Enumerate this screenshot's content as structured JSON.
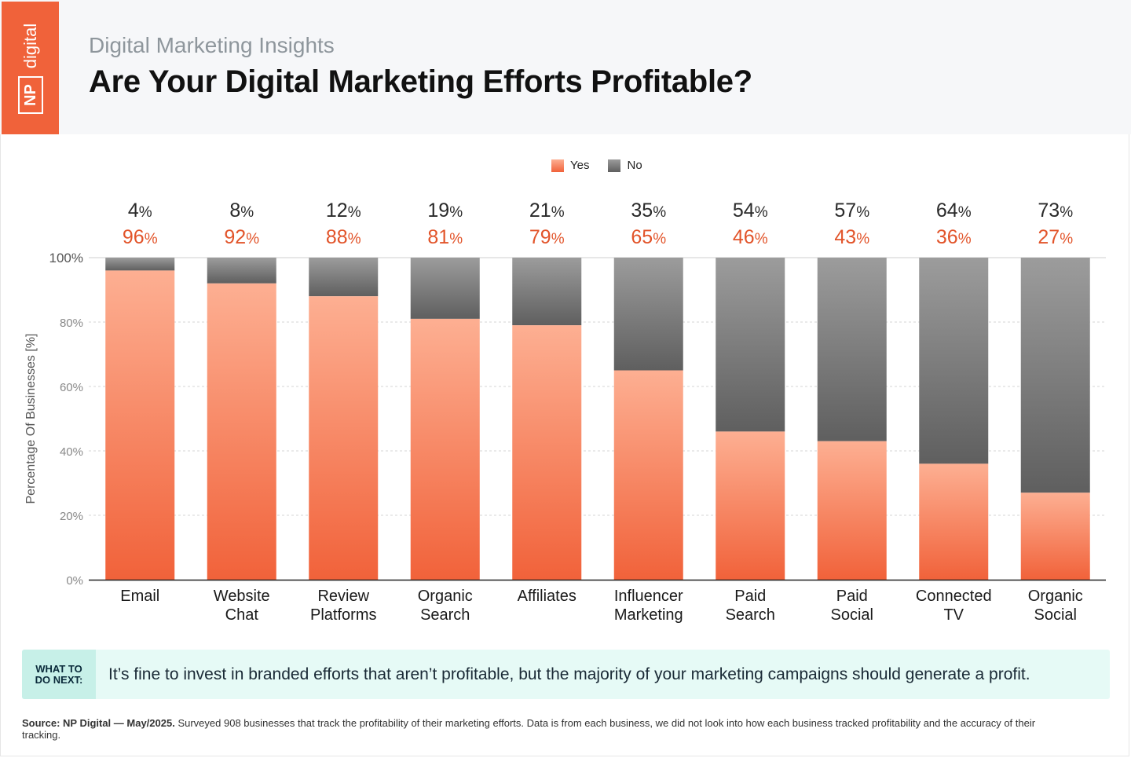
{
  "header": {
    "logo_np": "NP",
    "logo_digital": "digital",
    "subtitle": "Digital Marketing Insights",
    "title": "Are Your Digital Marketing Efforts Profitable?"
  },
  "colors": {
    "yes_top": "#fdaf92",
    "yes_bottom": "#f1623a",
    "no_top": "#9c9c9c",
    "no_bottom": "#5f5f5f",
    "yes_label": "#e2542a",
    "brand": "#f0623a"
  },
  "chart_data": {
    "type": "bar",
    "stacked": true,
    "categories": [
      [
        "Email"
      ],
      [
        "Website",
        "Chat"
      ],
      [
        "Review",
        "Platforms"
      ],
      [
        "Organic",
        "Search"
      ],
      [
        "Affiliates"
      ],
      [
        "Influencer",
        "Marketing"
      ],
      [
        "Paid",
        "Search"
      ],
      [
        "Paid",
        "Social"
      ],
      [
        "Connected",
        "TV"
      ],
      [
        "Organic",
        "Social"
      ]
    ],
    "series": [
      {
        "name": "Yes",
        "values": [
          96,
          92,
          88,
          81,
          79,
          65,
          46,
          43,
          36,
          27
        ]
      },
      {
        "name": "No",
        "values": [
          4,
          8,
          12,
          19,
          21,
          35,
          54,
          57,
          64,
          73
        ]
      }
    ],
    "ylabel": "Percentage Of Businesses [%]",
    "ylim": [
      0,
      100
    ],
    "yticks": [
      0,
      20,
      40,
      60,
      80,
      100
    ],
    "ytick_labels": [
      "0%",
      "20%",
      "40%",
      "60%",
      "80%",
      "100%"
    ],
    "grid": true,
    "legend": "top-center"
  },
  "tip": {
    "label": "WHAT TO\nDO NEXT:",
    "text": "It’s fine to invest in branded efforts that aren’t profitable, but the majority of your marketing campaigns should generate a profit."
  },
  "source": {
    "bold": "Source: NP Digital — May/2025.",
    "text": " Surveyed 908 businesses that track the profitability of their marketing efforts. Data is from each business, we did not look into how each business tracked profitability and the accuracy of their tracking."
  }
}
